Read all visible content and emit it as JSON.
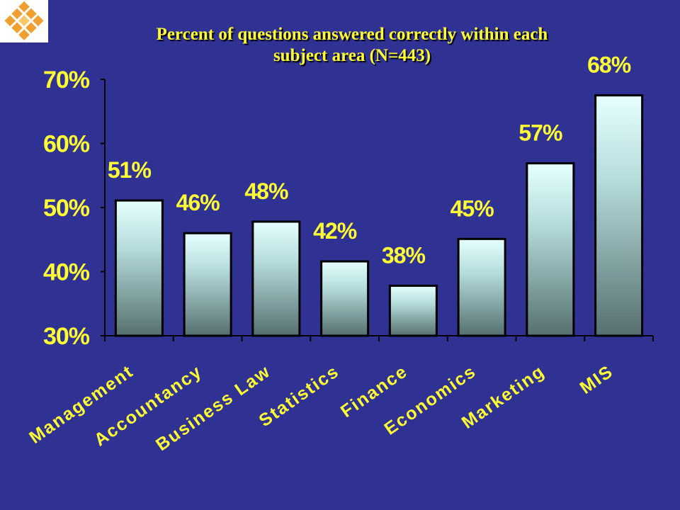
{
  "chart_data": {
    "type": "bar",
    "title": "Percent of questions answered correctly within each subject area (N=443)",
    "categories": [
      "Management",
      "Accountancy",
      "Business Law",
      "Statistics",
      "Finance",
      "Economics",
      "Marketing",
      "MIS"
    ],
    "values": [
      51.1,
      46,
      47.8,
      41.6,
      37.8,
      45.1,
      56.9,
      67.5
    ],
    "value_labels": [
      "51%",
      "46%",
      "48%",
      "42%",
      "38%",
      "45%",
      "57%",
      "68%"
    ],
    "ylim": [
      30,
      70
    ],
    "yticks": [
      {
        "value": 30,
        "label": "30%"
      },
      {
        "value": 40,
        "label": "40%"
      },
      {
        "value": 50,
        "label": "50%"
      },
      {
        "value": 60,
        "label": "60%"
      },
      {
        "value": 70,
        "label": "70%"
      }
    ]
  }
}
